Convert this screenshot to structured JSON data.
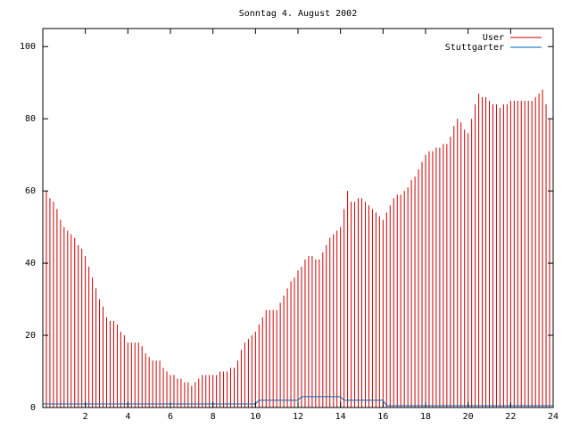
{
  "chart_data": {
    "type": "impulses",
    "title": "Sonntag 4. August 2002",
    "x": [
      0,
      0.167,
      0.333,
      0.5,
      0.667,
      0.833,
      1,
      1.167,
      1.333,
      1.5,
      1.667,
      1.833,
      2,
      2.167,
      2.333,
      2.5,
      2.667,
      2.833,
      3,
      3.167,
      3.333,
      3.5,
      3.667,
      3.833,
      4,
      4.167,
      4.333,
      4.5,
      4.667,
      4.833,
      5,
      5.167,
      5.333,
      5.5,
      5.667,
      5.833,
      6,
      6.167,
      6.333,
      6.5,
      6.667,
      6.833,
      7,
      7.167,
      7.333,
      7.5,
      7.667,
      7.833,
      8,
      8.167,
      8.333,
      8.5,
      8.667,
      8.833,
      9,
      9.167,
      9.333,
      9.5,
      9.667,
      9.833,
      10,
      10.167,
      10.333,
      10.5,
      10.667,
      10.833,
      11,
      11.167,
      11.333,
      11.5,
      11.667,
      11.833,
      12,
      12.167,
      12.333,
      12.5,
      12.667,
      12.833,
      13,
      13.167,
      13.333,
      13.5,
      13.667,
      13.833,
      14,
      14.167,
      14.333,
      14.5,
      14.667,
      14.833,
      15,
      15.167,
      15.333,
      15.5,
      15.667,
      15.833,
      16,
      16.167,
      16.333,
      16.5,
      16.667,
      16.833,
      17,
      17.167,
      17.333,
      17.5,
      17.667,
      17.833,
      18,
      18.167,
      18.333,
      18.5,
      18.667,
      18.833,
      19,
      19.167,
      19.333,
      19.5,
      19.667,
      19.833,
      20,
      20.167,
      20.333,
      20.5,
      20.667,
      20.833,
      21,
      21.167,
      21.333,
      21.5,
      21.667,
      21.833,
      22,
      22.167,
      22.333,
      22.5,
      22.667,
      22.833,
      23,
      23.167,
      23.333,
      23.5,
      23.667,
      23.833,
      24
    ],
    "series": [
      {
        "name": "User",
        "color": "#cc0000",
        "style": "impulses",
        "values": [
          61,
          60,
          58,
          57,
          55,
          52,
          50,
          49,
          48,
          47,
          45,
          44,
          42,
          39,
          36,
          33,
          30,
          28,
          25,
          24,
          24,
          23,
          21,
          20,
          18,
          18,
          18,
          18,
          17,
          15,
          14,
          13,
          13,
          13,
          11,
          10,
          9,
          9,
          8,
          8,
          7,
          7,
          6,
          7,
          8,
          9,
          9,
          9,
          9,
          9,
          10,
          10,
          10,
          11,
          11,
          13,
          16,
          18,
          19,
          20,
          21,
          23,
          25,
          27,
          27,
          27,
          27,
          29,
          31,
          33,
          35,
          36,
          38,
          39,
          41,
          42,
          42,
          41,
          41,
          43,
          45,
          47,
          48,
          49,
          50,
          55,
          60,
          57,
          57,
          58,
          58,
          57,
          56,
          55,
          54,
          53,
          52,
          54,
          56,
          58,
          59,
          59,
          60,
          61,
          63,
          64,
          66,
          68,
          70,
          71,
          71,
          72,
          72,
          73,
          73,
          75,
          78,
          80,
          79,
          77,
          76,
          80,
          84,
          87,
          86,
          86,
          85,
          84,
          84,
          83,
          84,
          84,
          85,
          85,
          85,
          85,
          85,
          85,
          85,
          86,
          87,
          88,
          84,
          80,
          76
        ]
      },
      {
        "name": "Stuttgarter",
        "color": "#0066b3",
        "style": "line",
        "values": [
          1,
          1,
          1,
          1,
          1,
          1,
          1,
          1,
          1,
          1,
          1,
          1,
          1,
          1,
          1,
          1,
          1,
          1,
          1,
          1,
          1,
          1,
          1,
          1,
          1,
          1,
          1,
          1,
          1,
          1,
          1,
          1,
          1,
          1,
          1,
          1,
          1,
          1,
          1,
          1,
          1,
          1,
          1,
          1,
          1,
          1,
          1,
          1,
          1,
          1,
          1,
          1,
          1,
          1,
          1,
          1,
          1,
          1,
          1,
          1,
          1,
          2,
          2,
          2,
          2,
          2,
          2,
          2,
          2,
          2,
          2,
          2,
          2,
          3,
          3,
          3,
          3,
          3,
          3,
          3,
          3,
          3,
          3,
          3,
          3,
          2,
          2,
          2,
          2,
          2,
          2,
          2,
          2,
          2,
          2,
          2,
          2,
          0.5,
          0.5,
          0.5,
          0.5,
          0.5,
          0.5,
          0.5,
          0.5,
          0.5,
          0.5,
          0.5,
          0.5,
          0.5,
          0.5,
          0.5,
          0.5,
          0.5,
          0.5,
          0.5,
          0.5,
          0.5,
          0.5,
          0.5,
          0.5,
          0.5,
          0.5,
          0.5,
          0.5,
          0.5,
          0.5,
          0.5,
          0.5,
          0.5,
          0.5,
          0.5,
          0.5,
          0.5,
          0.5,
          0.5,
          0.5,
          0.5,
          0.5,
          0.5,
          0.5,
          0.5,
          0.5,
          0.5,
          0.5
        ]
      }
    ],
    "xlim": [
      0,
      24
    ],
    "xticks": [
      2,
      4,
      6,
      8,
      10,
      12,
      14,
      16,
      18,
      20,
      22,
      24
    ],
    "ylim": [
      0,
      105
    ],
    "yticks": [
      0,
      20,
      40,
      60,
      80,
      100
    ],
    "grid": false,
    "legend": "top-right"
  }
}
